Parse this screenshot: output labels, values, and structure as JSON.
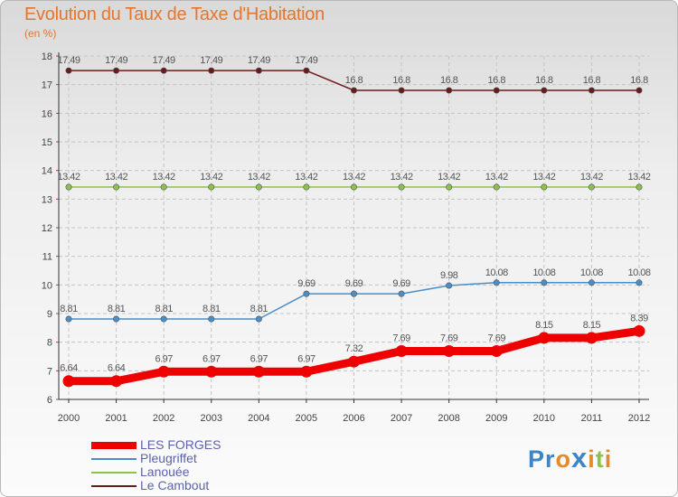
{
  "title": "Evolution du Taux de Taxe d'Habitation",
  "subtitle": "(en %)",
  "brand": {
    "text": "Proxiti"
  },
  "colors": {
    "title": "#e4762e",
    "grid": "#c4c4c4",
    "axis": "#333333",
    "legend_text": "#5b63ad",
    "brand_letters": [
      "#3a86c8",
      "#3a86c8",
      "#e58a2b",
      "#3a86c8",
      "#e58a2b",
      "#8bc34a",
      "#e58a2b"
    ]
  },
  "chart_data": {
    "type": "line",
    "title": "Evolution du Taux de Taxe d'Habitation",
    "ylabel": "(en %)",
    "xlabel": "",
    "x": [
      "2000",
      "2001",
      "2002",
      "2003",
      "2004",
      "2005",
      "2006",
      "2007",
      "2008",
      "2009",
      "2010",
      "2011",
      "2012"
    ],
    "yticks": [
      "6",
      "7",
      "8",
      "9",
      "10",
      "11",
      "12",
      "13",
      "14",
      "15",
      "16",
      "17",
      "18"
    ],
    "ylim": [
      6,
      18
    ],
    "grid": true,
    "legend_position": "bottom-left",
    "series": [
      {
        "name": "LES FORGES",
        "color": "#ee0000",
        "style": "bold",
        "values": [
          6.64,
          6.64,
          6.97,
          6.97,
          6.97,
          6.97,
          7.32,
          7.69,
          7.69,
          7.69,
          8.15,
          8.15,
          8.39
        ],
        "labels": [
          "6.64",
          "6.64",
          "6.97",
          "6.97",
          "6.97",
          "6.97",
          "7.32",
          "7.69",
          "7.69",
          "7.69",
          "8.15",
          "8.15",
          "8.39"
        ]
      },
      {
        "name": "Pleugriffet",
        "color": "#4a8ec9",
        "style": "thin",
        "values": [
          8.81,
          8.81,
          8.81,
          8.81,
          8.81,
          9.69,
          9.69,
          9.69,
          9.98,
          10.08,
          10.08,
          10.08,
          10.08
        ],
        "labels": [
          "8.81",
          "8.81",
          "8.81",
          "8.81",
          "8.81",
          "9.69",
          "9.69",
          "9.69",
          "9.98",
          "10.08",
          "10.08",
          "10.08",
          "10.08"
        ]
      },
      {
        "name": "Lanouée",
        "color": "#8bc34a",
        "style": "thin",
        "values": [
          13.42,
          13.42,
          13.42,
          13.42,
          13.42,
          13.42,
          13.42,
          13.42,
          13.42,
          13.42,
          13.42,
          13.42,
          13.42
        ],
        "labels": [
          "13.42",
          "13.42",
          "13.42",
          "13.42",
          "13.42",
          "13.42",
          "13.42",
          "13.42",
          "13.42",
          "13.42",
          "13.42",
          "13.42",
          "13.42"
        ]
      },
      {
        "name": "Le Cambout",
        "color": "#6b1a1a",
        "style": "thin",
        "values": [
          17.49,
          17.49,
          17.49,
          17.49,
          17.49,
          17.49,
          16.8,
          16.8,
          16.8,
          16.8,
          16.8,
          16.8,
          16.8
        ],
        "labels": [
          "17.49",
          "17.49",
          "17.49",
          "17.49",
          "17.49",
          "17.49",
          "16.8",
          "16.8",
          "16.8",
          "16.8",
          "16.8",
          "16.8",
          "16.8"
        ]
      }
    ]
  }
}
